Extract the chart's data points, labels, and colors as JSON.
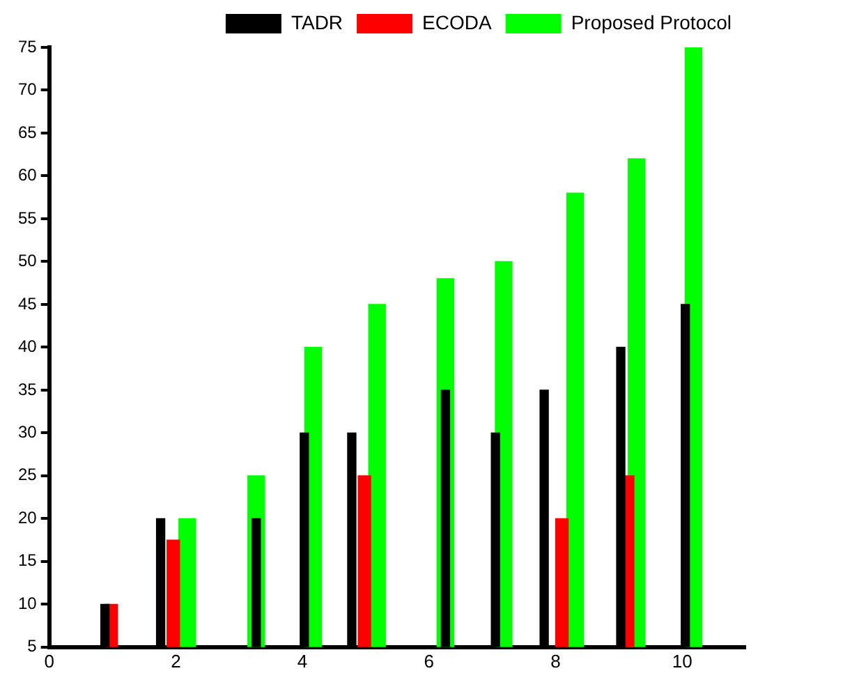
{
  "chart_data": {
    "type": "bar",
    "xlim": [
      0,
      11
    ],
    "xticks": [
      0,
      2,
      4,
      6,
      8,
      10
    ],
    "ylim": [
      5,
      75
    ],
    "yticks": [
      5,
      10,
      15,
      20,
      25,
      30,
      35,
      40,
      45,
      50,
      55,
      60,
      65,
      70,
      75
    ],
    "grid": false,
    "legend": "top right",
    "series": [
      {
        "name": "TADR",
        "color": "#000000",
        "x": [
          0.88,
          1.76,
          3.27,
          4.03,
          4.78,
          6.26,
          7.05,
          7.82,
          9.03,
          10.05
        ],
        "values": [
          10,
          20,
          20,
          30,
          30,
          35,
          30,
          35,
          40,
          45
        ]
      },
      {
        "name": "ECODA",
        "color": "#ff0000",
        "x": [
          0.98,
          1.96,
          4.98,
          8.1,
          9.14
        ],
        "values": [
          10,
          17.5,
          25,
          20,
          25
        ]
      },
      {
        "name": "Proposed Protocol",
        "color": "#00ff00",
        "x": [
          2.18,
          3.27,
          4.17,
          5.18,
          6.26,
          7.18,
          8.31,
          9.28,
          10.18
        ],
        "values": [
          20,
          25,
          40,
          45,
          48,
          50,
          58,
          62,
          75
        ]
      }
    ]
  }
}
